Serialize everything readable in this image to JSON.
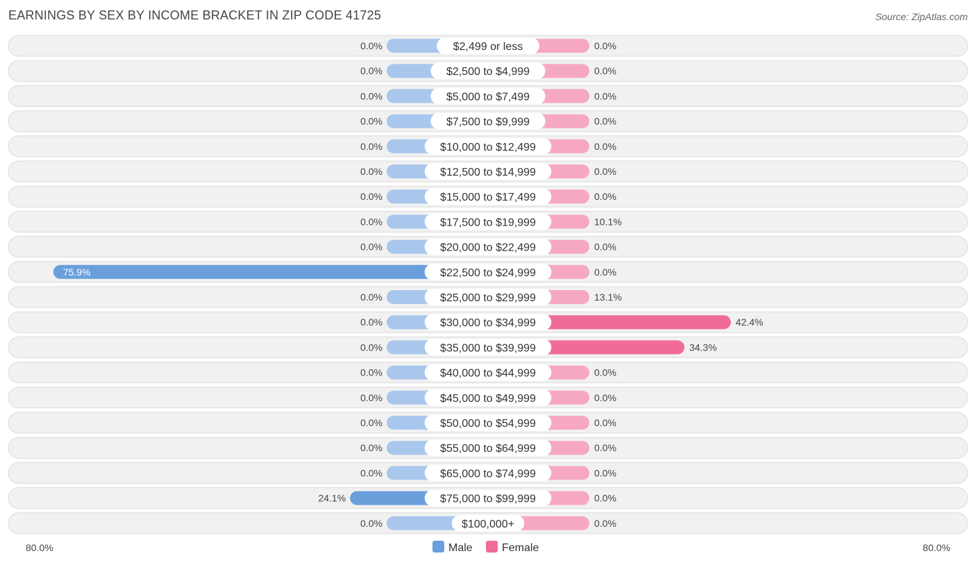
{
  "header": {
    "title": "EARNINGS BY SEX BY INCOME BRACKET IN ZIP CODE 41725",
    "source": "Source: ZipAtlas.com"
  },
  "colors": {
    "male_strong": "#6a9fdc",
    "male_light": "#a9c7ec",
    "female_strong": "#f06b96",
    "female_light": "#f7a8c1"
  },
  "chart_data": {
    "type": "bar",
    "orientation": "horizontal-diverging",
    "title": "EARNINGS BY SEX BY INCOME BRACKET IN ZIP CODE 41725",
    "categories": [
      "$2,499 or less",
      "$2,500 to $4,999",
      "$5,000 to $7,499",
      "$7,500 to $9,999",
      "$10,000 to $12,499",
      "$12,500 to $14,999",
      "$15,000 to $17,499",
      "$17,500 to $19,999",
      "$20,000 to $22,499",
      "$22,500 to $24,999",
      "$25,000 to $29,999",
      "$30,000 to $34,999",
      "$35,000 to $39,999",
      "$40,000 to $44,999",
      "$45,000 to $49,999",
      "$50,000 to $54,999",
      "$55,000 to $64,999",
      "$65,000 to $74,999",
      "$75,000 to $99,999",
      "$100,000+"
    ],
    "series": [
      {
        "name": "Male",
        "values": [
          0,
          0,
          0,
          0,
          0,
          0,
          0,
          0,
          0,
          75.9,
          0,
          0,
          0,
          0,
          0,
          0,
          0,
          0,
          24.1,
          0
        ],
        "labels": [
          "0.0%",
          "0.0%",
          "0.0%",
          "0.0%",
          "0.0%",
          "0.0%",
          "0.0%",
          "0.0%",
          "0.0%",
          "75.9%",
          "0.0%",
          "0.0%",
          "0.0%",
          "0.0%",
          "0.0%",
          "0.0%",
          "0.0%",
          "0.0%",
          "24.1%",
          "0.0%"
        ]
      },
      {
        "name": "Female",
        "values": [
          0,
          0,
          0,
          0,
          0,
          0,
          0,
          10.1,
          0,
          0,
          13.1,
          42.4,
          34.3,
          0,
          0,
          0,
          0,
          0,
          0,
          0
        ],
        "labels": [
          "0.0%",
          "0.0%",
          "0.0%",
          "0.0%",
          "0.0%",
          "0.0%",
          "0.0%",
          "10.1%",
          "0.0%",
          "0.0%",
          "13.1%",
          "42.4%",
          "34.3%",
          "0.0%",
          "0.0%",
          "0.0%",
          "0.0%",
          "0.0%",
          "0.0%",
          "0.0%"
        ]
      }
    ],
    "xlim": [
      -80,
      80
    ],
    "axis_labels": {
      "left": "80.0%",
      "right": "80.0%"
    },
    "legend": {
      "position": "bottom-center",
      "entries": [
        "Male",
        "Female"
      ]
    }
  }
}
